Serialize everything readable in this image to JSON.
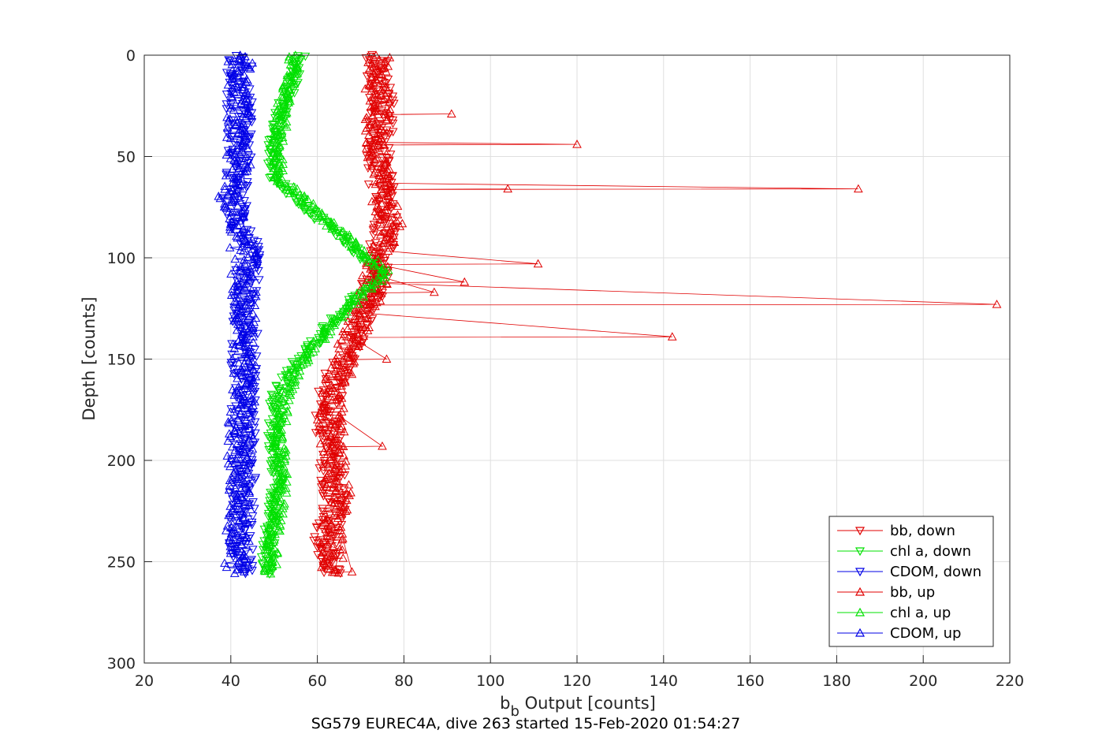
{
  "chart_data": {
    "type": "scatter",
    "title": "",
    "xlabel": "b",
    "xlabel_subscript": "b",
    "xlabel_suffix": " Output [counts]",
    "ylabel": "Depth [counts]",
    "caption": "SG579 EUREC4A, dive 263 started 15-Feb-2020 01:54:27",
    "xlim": [
      20,
      220
    ],
    "ylim": [
      0,
      300
    ],
    "y_reversed": true,
    "grid": true,
    "legend_position": "bottom-right",
    "x_ticks": [
      "20",
      "40",
      "60",
      "80",
      "100",
      "120",
      "140",
      "160",
      "180",
      "200",
      "220"
    ],
    "y_ticks": [
      "0",
      "50",
      "100",
      "150",
      "200",
      "250",
      "300"
    ],
    "series": [
      {
        "name": "bb, down",
        "color": "#e00000",
        "marker": "triangle-down",
        "direction": "down",
        "profile": [
          [
            0,
            74
          ],
          [
            25,
            75
          ],
          [
            50,
            74
          ],
          [
            70,
            75
          ],
          [
            85,
            76
          ],
          [
            100,
            74
          ],
          [
            115,
            73
          ],
          [
            130,
            70
          ],
          [
            150,
            66
          ],
          [
            165,
            63
          ],
          [
            180,
            62
          ],
          [
            200,
            63
          ],
          [
            220,
            64
          ],
          [
            240,
            62
          ],
          [
            250,
            62
          ],
          [
            256,
            63
          ]
        ],
        "jitter": 3
      },
      {
        "name": "chl a, down",
        "color": "#00e000",
        "marker": "triangle-down",
        "direction": "down",
        "profile": [
          [
            0,
            56
          ],
          [
            10,
            55
          ],
          [
            25,
            52
          ],
          [
            45,
            50
          ],
          [
            60,
            50
          ],
          [
            70,
            55
          ],
          [
            80,
            60
          ],
          [
            90,
            66
          ],
          [
            100,
            71
          ],
          [
            108,
            75
          ],
          [
            115,
            71
          ],
          [
            125,
            66
          ],
          [
            140,
            60
          ],
          [
            155,
            54
          ],
          [
            170,
            50
          ],
          [
            190,
            50
          ],
          [
            210,
            51
          ],
          [
            235,
            49
          ],
          [
            256,
            48
          ]
        ],
        "jitter": 1.5
      },
      {
        "name": "CDOM, down",
        "color": "#0000e6",
        "marker": "triangle-down",
        "direction": "down",
        "profile": [
          [
            0,
            42
          ],
          [
            50,
            42
          ],
          [
            70,
            41
          ],
          [
            100,
            44
          ],
          [
            150,
            43
          ],
          [
            200,
            43
          ],
          [
            256,
            42
          ]
        ],
        "jitter": 3
      },
      {
        "name": "bb, up",
        "color": "#e00000",
        "marker": "triangle-up",
        "direction": "up",
        "profile": [
          [
            0,
            74
          ],
          [
            25,
            74
          ],
          [
            50,
            74
          ],
          [
            70,
            75
          ],
          [
            85,
            77
          ],
          [
            100,
            74
          ],
          [
            115,
            73
          ],
          [
            130,
            70
          ],
          [
            150,
            66
          ],
          [
            165,
            64
          ],
          [
            180,
            63
          ],
          [
            200,
            64
          ],
          [
            220,
            65
          ],
          [
            240,
            63
          ],
          [
            256,
            64
          ]
        ],
        "jitter": 3,
        "spikes": [
          [
            29,
            91
          ],
          [
            44,
            120
          ],
          [
            66,
            104
          ],
          [
            66,
            185
          ],
          [
            103,
            111
          ],
          [
            112,
            94
          ],
          [
            117,
            87
          ],
          [
            123,
            217
          ],
          [
            139,
            142
          ],
          [
            150,
            76
          ],
          [
            193,
            75
          ],
          [
            255,
            68
          ]
        ]
      },
      {
        "name": "chl a, up",
        "color": "#00e000",
        "marker": "triangle-up",
        "direction": "up",
        "profile": [
          [
            0,
            55
          ],
          [
            10,
            54
          ],
          [
            25,
            52
          ],
          [
            45,
            51
          ],
          [
            60,
            51
          ],
          [
            70,
            56
          ],
          [
            80,
            61
          ],
          [
            90,
            67
          ],
          [
            100,
            72
          ],
          [
            108,
            76
          ],
          [
            115,
            72
          ],
          [
            125,
            67
          ],
          [
            140,
            61
          ],
          [
            155,
            55
          ],
          [
            170,
            52
          ],
          [
            190,
            51
          ],
          [
            210,
            52
          ],
          [
            235,
            50
          ],
          [
            256,
            49
          ]
        ],
        "jitter": 1.5
      },
      {
        "name": "CDOM, up",
        "color": "#0000e6",
        "marker": "triangle-up",
        "direction": "up",
        "profile": [
          [
            0,
            42
          ],
          [
            50,
            42
          ],
          [
            70,
            40
          ],
          [
            100,
            43
          ],
          [
            150,
            43
          ],
          [
            200,
            42
          ],
          [
            256,
            41
          ]
        ],
        "jitter": 3
      }
    ]
  }
}
